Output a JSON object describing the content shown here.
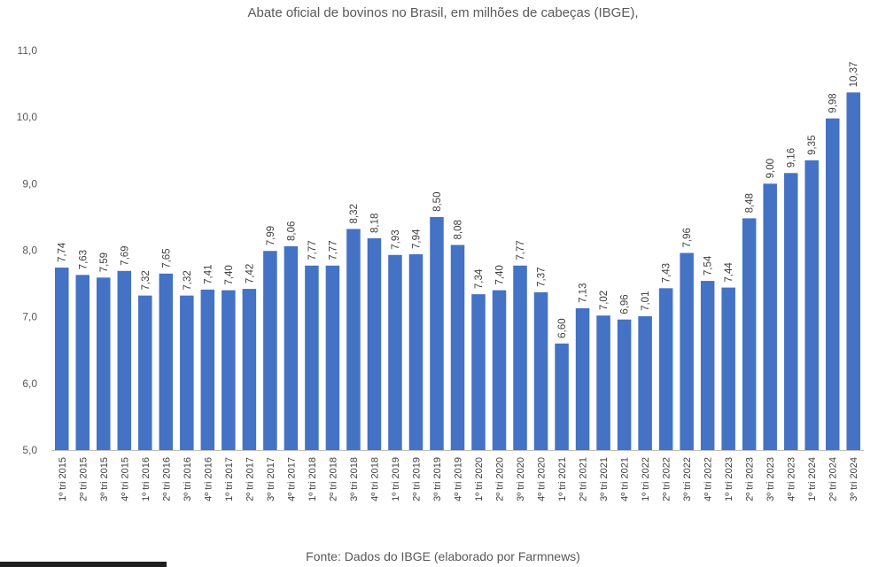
{
  "chart_data": {
    "type": "bar",
    "title": "Abate oficial de bovinos no Brasil, em milhões de cabeças (IBGE),",
    "source": "Fonte: Dados do IBGE (elaborado por Farmnews)",
    "xlabel": "",
    "ylabel": "",
    "ylim": [
      5.0,
      11.0
    ],
    "yticks": [
      "5,0",
      "6,0",
      "7,0",
      "8,0",
      "9,0",
      "10,0",
      "11,0"
    ],
    "grid": false,
    "bar_color": "#4472C4",
    "categories": [
      "1º tri 2015",
      "2º tri 2015",
      "3º tri 2015",
      "4º tri 2015",
      "1º tri 2016",
      "2º tri 2016",
      "3º tri 2016",
      "4º tri 2016",
      "1º tri 2017",
      "2º tri 2017",
      "3º tri 2017",
      "4º tri 2017",
      "1º tri 2018",
      "2º tri 2018",
      "3º tri 2018",
      "4º tri 2018",
      "1º tri 2019",
      "2º tri 2019",
      "3º tri 2019",
      "4º tri 2019",
      "1º tri 2020",
      "2º tri 2020",
      "3º tri 2020",
      "4º tri 2020",
      "1º tri 2021",
      "2º tri 2021",
      "3º tri 2021",
      "4º tri 2021",
      "1º tri 2022",
      "2º tri 2022",
      "3º tri 2022",
      "4º tri 2022",
      "1º tri 2023",
      "2º tri 2023",
      "3º tri 2023",
      "4º tri 2023",
      "1º tri 2024",
      "2º tri 2024",
      "3º tri 2024"
    ],
    "values": [
      7.74,
      7.63,
      7.59,
      7.69,
      7.32,
      7.65,
      7.32,
      7.41,
      7.4,
      7.42,
      7.99,
      8.06,
      7.77,
      7.77,
      8.32,
      8.18,
      7.93,
      7.94,
      8.5,
      8.08,
      7.34,
      7.4,
      7.77,
      7.37,
      6.6,
      7.13,
      7.02,
      6.96,
      7.01,
      7.43,
      7.96,
      7.54,
      7.44,
      8.48,
      9.0,
      9.16,
      9.35,
      9.98,
      10.37
    ],
    "value_labels": [
      "7,74",
      "7,63",
      "7,59",
      "7,69",
      "7,32",
      "7,65",
      "7,32",
      "7,41",
      "7,40",
      "7,42",
      "7,99",
      "8,06",
      "7,77",
      "7,77",
      "8,32",
      "8,18",
      "7,93",
      "7,94",
      "8,50",
      "8,08",
      "7,34",
      "7,40",
      "7,77",
      "7,37",
      "6,60",
      "7,13",
      "7,02",
      "6,96",
      "7,01",
      "7,43",
      "7,96",
      "7,54",
      "7,44",
      "8,48",
      "9,00",
      "9,16",
      "9,35",
      "9,98",
      "10,37"
    ]
  }
}
